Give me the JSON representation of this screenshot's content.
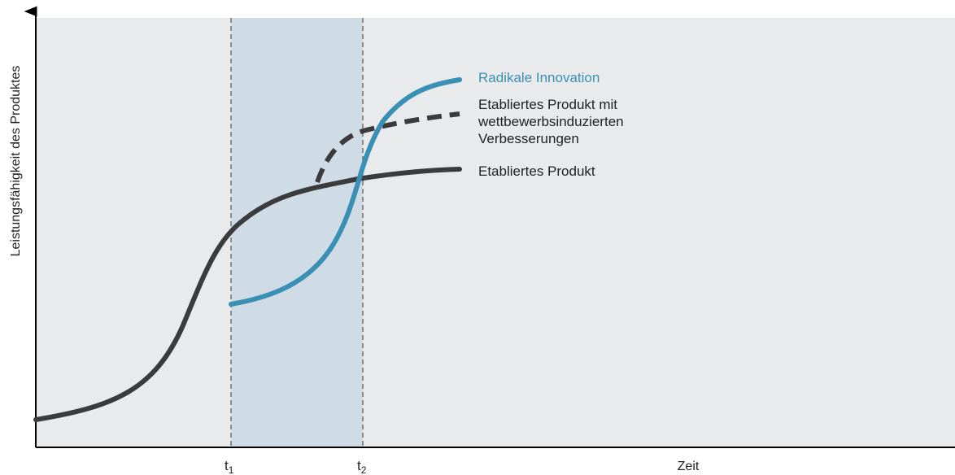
{
  "diagram": {
    "y_axis_label": "Leistungsfähigkeit des Produktes",
    "x_axis_label": "Zeit",
    "ticks": [
      {
        "main": "t",
        "sub": "1"
      },
      {
        "main": "t",
        "sub": "2"
      }
    ],
    "curves": {
      "radical": {
        "label": "Radikale Innovation"
      },
      "improved": {
        "label_lines": [
          "Etabliertes Produkt mit",
          "wettbewerbsinduzierten",
          "Verbesserungen"
        ]
      },
      "established": {
        "label": "Etabliertes Produkt"
      }
    }
  },
  "colors": {
    "plot_background": "#e8eaeb",
    "highlight_band": "#cfdce6",
    "established_curve": "#3b3b3b",
    "radical_curve": "#3a8fb5",
    "radical_label": "#3a8fb5",
    "text": "#222222",
    "axis": "#000000"
  }
}
